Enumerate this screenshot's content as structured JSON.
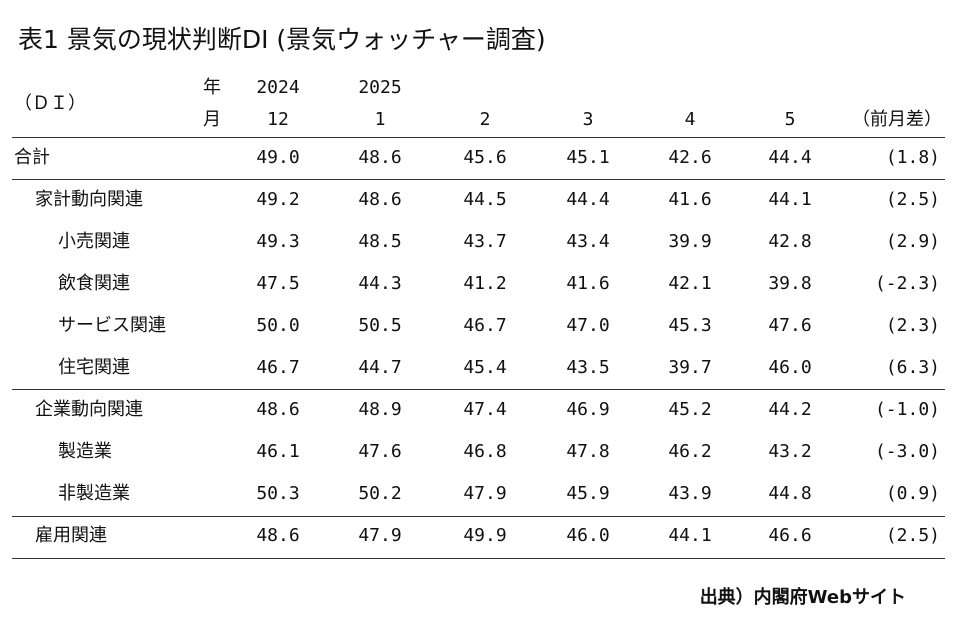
{
  "title": "表1 景気の現状判断DI (景気ウォッチャー調査)",
  "header": {
    "unit": "（ＤＩ）",
    "year_mark": "年",
    "month_mark": "月",
    "years": [
      "2024",
      "2025"
    ],
    "months": [
      "12",
      "1",
      "2",
      "3",
      "4",
      "5"
    ],
    "diff": "（前月差）"
  },
  "table": {
    "total": {
      "label": "合計",
      "values": [
        "49.0",
        "48.6",
        "45.6",
        "45.1",
        "42.6",
        "44.4",
        "(1.8)"
      ]
    },
    "groups": [
      {
        "label": "家計動向関連",
        "values": [
          "49.2",
          "48.6",
          "44.5",
          "44.4",
          "41.6",
          "44.1",
          "(2.5)"
        ],
        "items": [
          {
            "label": "小売関連",
            "values": [
              "49.3",
              "48.5",
              "43.7",
              "43.4",
              "39.9",
              "42.8",
              "(2.9)"
            ]
          },
          {
            "label": "飲食関連",
            "values": [
              "47.5",
              "44.3",
              "41.2",
              "41.6",
              "42.1",
              "39.8",
              "(-2.3)"
            ]
          },
          {
            "label": "サービス関連",
            "values": [
              "50.0",
              "50.5",
              "46.7",
              "47.0",
              "45.3",
              "47.6",
              "(2.3)"
            ]
          },
          {
            "label": "住宅関連",
            "values": [
              "46.7",
              "44.7",
              "45.4",
              "43.5",
              "39.7",
              "46.0",
              "(6.3)"
            ]
          }
        ]
      },
      {
        "label": "企業動向関連",
        "values": [
          "48.6",
          "48.9",
          "47.4",
          "46.9",
          "45.2",
          "44.2",
          "(-1.0)"
        ],
        "items": [
          {
            "label": "製造業",
            "values": [
              "46.1",
              "47.6",
              "46.8",
              "47.8",
              "46.2",
              "43.2",
              "(-3.0)"
            ]
          },
          {
            "label": "非製造業",
            "values": [
              "50.3",
              "50.2",
              "47.9",
              "45.9",
              "43.9",
              "44.8",
              "(0.9)"
            ]
          }
        ]
      },
      {
        "label": "雇用関連",
        "values": [
          "48.6",
          "47.9",
          "49.9",
          "46.0",
          "44.1",
          "46.6",
          "(2.5)"
        ],
        "items": []
      }
    ]
  },
  "source": "出典）内閣府Webサイト"
}
